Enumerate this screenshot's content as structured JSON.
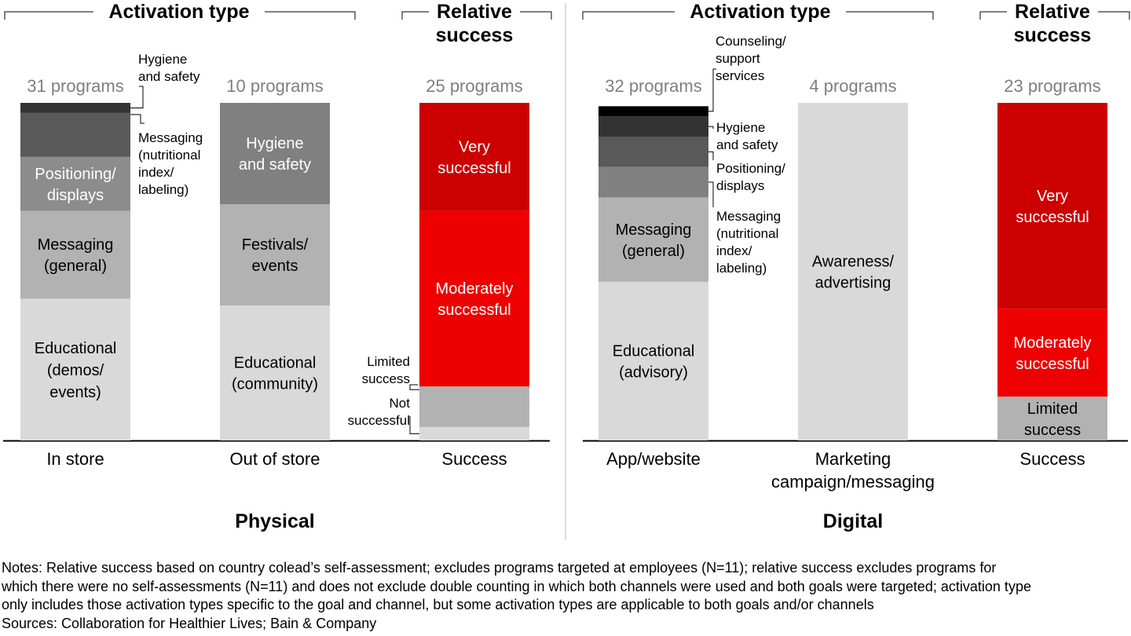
{
  "panels": [
    {
      "name": "Physical",
      "headers": {
        "activation": "Activation type",
        "success": [
          "Relative",
          "success"
        ]
      }
    },
    {
      "name": "Digital",
      "headers": {
        "activation": "Activation type",
        "success": [
          "Relative",
          "success"
        ]
      }
    }
  ],
  "chart_data": [
    {
      "type": "bar",
      "stacked": true,
      "group": "Physical",
      "category": "In store",
      "program_count": "31 programs",
      "segments": [
        {
          "label": "Educational (demos/ events)",
          "share": 0.42,
          "color": "#d9d9d9"
        },
        {
          "label": "Messaging (general)",
          "share": 0.26,
          "color": "#b2b2b2"
        },
        {
          "label": "Positioning/ displays",
          "share": 0.16,
          "color": "#8c8c8c"
        },
        {
          "label": "Messaging (nutritional index/ labeling)",
          "share": 0.13,
          "color": "#595959"
        },
        {
          "label": "Hygiene and safety",
          "share": 0.03,
          "color": "#333333"
        }
      ]
    },
    {
      "type": "bar",
      "stacked": true,
      "group": "Physical",
      "category": "Out of store",
      "program_count": "10 programs",
      "segments": [
        {
          "label": "Educational (community)",
          "share": 0.4,
          "color": "#d9d9d9"
        },
        {
          "label": "Festivals/ events",
          "share": 0.3,
          "color": "#b2b2b2"
        },
        {
          "label": "Hygiene and safety",
          "share": 0.3,
          "color": "#808080"
        }
      ]
    },
    {
      "type": "bar",
      "stacked": true,
      "group": "Physical",
      "category": "Success",
      "program_count": "25 programs",
      "segments": [
        {
          "label": "Not successful",
          "share": 0.04,
          "color": "#d9d9d9"
        },
        {
          "label": "Limited success",
          "share": 0.12,
          "color": "#b2b2b2"
        },
        {
          "label": "Moderately successful",
          "share": 0.52,
          "color": "#ee0000"
        },
        {
          "label": "Very successful",
          "share": 0.32,
          "color": "#cc0000"
        }
      ]
    },
    {
      "type": "bar",
      "stacked": true,
      "group": "Digital",
      "category": "App/website",
      "program_count": "32 programs",
      "segments": [
        {
          "label": "Educational (advisory)",
          "share": 0.47,
          "color": "#d9d9d9"
        },
        {
          "label": "Messaging (general)",
          "share": 0.25,
          "color": "#b2b2b2"
        },
        {
          "label": "Messaging (nutritional index/ labeling)",
          "share": 0.09,
          "color": "#808080"
        },
        {
          "label": "Positioning/ displays",
          "share": 0.09,
          "color": "#595959"
        },
        {
          "label": "Hygiene and safety",
          "share": 0.06,
          "color": "#333333"
        },
        {
          "label": "Counseling/ support services",
          "share": 0.03,
          "color": "#000000"
        }
      ]
    },
    {
      "type": "bar",
      "stacked": true,
      "group": "Digital",
      "category": "Marketing campaign/messaging",
      "program_count": "4 programs",
      "segments": [
        {
          "label": "Awareness/ advertising",
          "share": 1.0,
          "color": "#d9d9d9"
        }
      ]
    },
    {
      "type": "bar",
      "stacked": true,
      "group": "Digital",
      "category": "Success",
      "program_count": "23 programs",
      "segments": [
        {
          "label": "Limited success",
          "share": 0.13,
          "color": "#b2b2b2"
        },
        {
          "label": "Moderately successful",
          "share": 0.26,
          "color": "#ee0000"
        },
        {
          "label": "Very successful",
          "share": 0.61,
          "color": "#cc0000"
        }
      ]
    }
  ],
  "notes": [
    "Notes: Relative success based on country colead’s self-assessment; excludes programs targeted at employees (N=11); relative success excludes programs for",
    "which there were no self-assessments (N=11) and does not exclude double counting in which both channels were used and both goals were targeted; activation type",
    "only includes those activation types specific to the goal and channel, but some activation types are applicable to both goals and/or channels",
    "Sources: Collaboration for Healthier Lives; Bain & Company"
  ]
}
